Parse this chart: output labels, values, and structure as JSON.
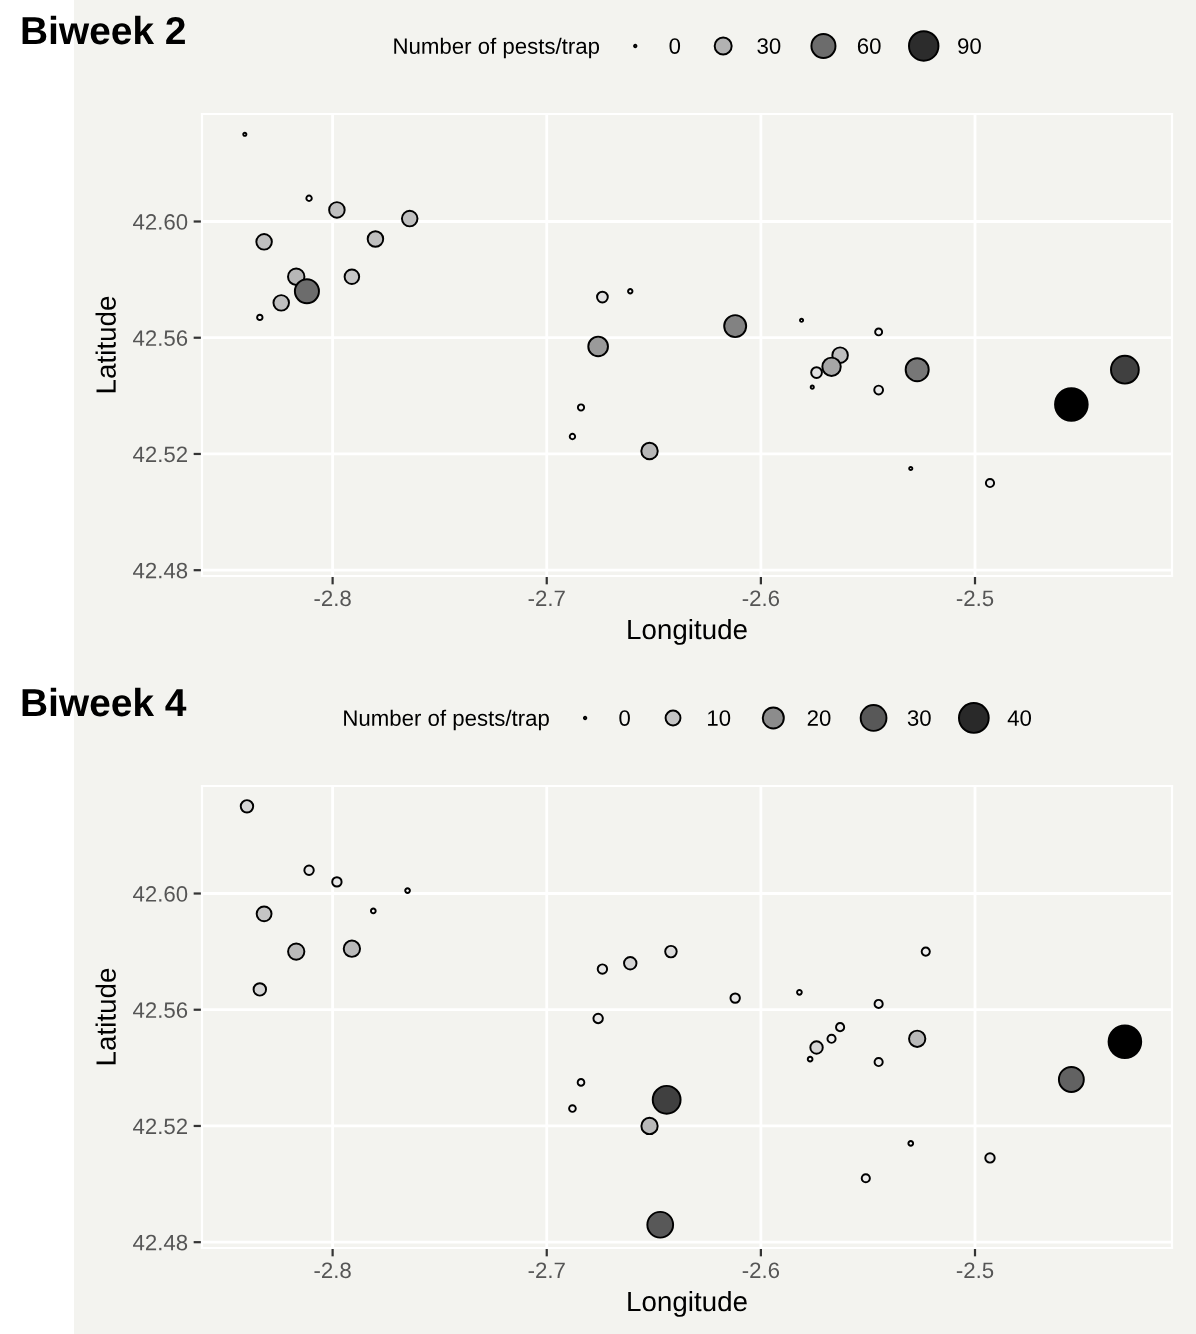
{
  "chart_data": [
    {
      "type": "bubble",
      "title": "Biweek 2",
      "xlabel": "Longitude",
      "ylabel": "Latitude",
      "legend_title": "Number of pests/trap",
      "grid": true,
      "x": [
        -2.841,
        -2.811,
        -2.798,
        -2.764,
        -2.832,
        -2.78,
        -2.817,
        -2.791,
        -2.812,
        -2.824,
        -2.834,
        -2.674,
        -2.661,
        -2.676,
        -2.684,
        -2.688,
        -2.652,
        -2.612,
        -2.581,
        -2.545,
        -2.563,
        -2.567,
        -2.574,
        -2.576,
        -2.545,
        -2.527,
        -2.455,
        -2.43,
        -2.53,
        -2.493
      ],
      "values": [
        42.63,
        42.608,
        42.604,
        42.601,
        42.593,
        42.594,
        42.581,
        42.581,
        42.576,
        42.572,
        42.567,
        42.574,
        42.576,
        42.557,
        42.536,
        42.526,
        42.521,
        42.564,
        42.566,
        42.562,
        42.554,
        42.55,
        42.548,
        42.543,
        42.542,
        42.549,
        42.537,
        42.549,
        42.515,
        42.51
      ],
      "sizes": [
        1,
        3,
        25,
        25,
        25,
        25,
        28,
        22,
        60,
        25,
        3,
        12,
        2,
        40,
        4,
        3,
        28,
        50,
        1,
        5,
        25,
        35,
        12,
        1,
        8,
        55,
        110,
        80,
        1,
        7
      ],
      "size_legend": [
        0,
        30,
        60,
        90
      ],
      "xlim": [
        -2.861,
        -2.408
      ],
      "ylim": [
        42.478,
        42.637
      ],
      "xticks": [
        -2.8,
        -2.7,
        -2.6,
        -2.5
      ],
      "yticks": [
        42.48,
        42.52,
        42.56,
        {
          "value": 42.6,
          "label": "42.60"
        }
      ]
    },
    {
      "type": "bubble",
      "title": "Biweek 4",
      "xlabel": "Longitude",
      "ylabel": "Latitude",
      "legend_title": "Number of pests/trap",
      "grid": true,
      "x": [
        -2.84,
        -2.811,
        -2.798,
        -2.765,
        -2.781,
        -2.832,
        -2.817,
        -2.791,
        -2.834,
        -2.674,
        -2.661,
        -2.676,
        -2.684,
        -2.688,
        -2.652,
        -2.644,
        -2.647,
        -2.642,
        -2.612,
        -2.582,
        -2.545,
        -2.523,
        -2.563,
        -2.567,
        -2.574,
        -2.577,
        -2.545,
        -2.527,
        -2.53,
        -2.551,
        -2.493,
        -2.455,
        -2.43
      ],
      "values": [
        42.63,
        42.608,
        42.604,
        42.601,
        42.594,
        42.593,
        42.58,
        42.581,
        42.567,
        42.574,
        42.576,
        42.557,
        42.535,
        42.526,
        42.52,
        42.529,
        42.486,
        42.58,
        42.564,
        42.566,
        42.562,
        42.58,
        42.554,
        42.55,
        42.547,
        42.543,
        42.542,
        42.55,
        42.514,
        42.502,
        42.509,
        42.536,
        42.549
      ],
      "sizes": [
        7,
        4,
        4,
        1,
        1,
        10,
        12,
        12,
        7,
        4,
        7,
        4,
        2,
        2,
        12,
        35,
        30,
        6,
        4,
        1,
        3,
        3,
        3,
        3,
        7,
        1,
        3,
        12,
        1,
        3,
        4,
        28,
        48
      ],
      "size_legend": [
        0,
        10,
        20,
        30,
        40
      ],
      "xlim": [
        -2.861,
        -2.408
      ],
      "ylim": [
        42.478,
        42.637
      ],
      "xticks": [
        -2.8,
        -2.7,
        -2.6,
        -2.5
      ],
      "yticks": [
        42.48,
        42.52,
        42.56,
        {
          "value": 42.6,
          "label": "42.60"
        }
      ]
    }
  ]
}
